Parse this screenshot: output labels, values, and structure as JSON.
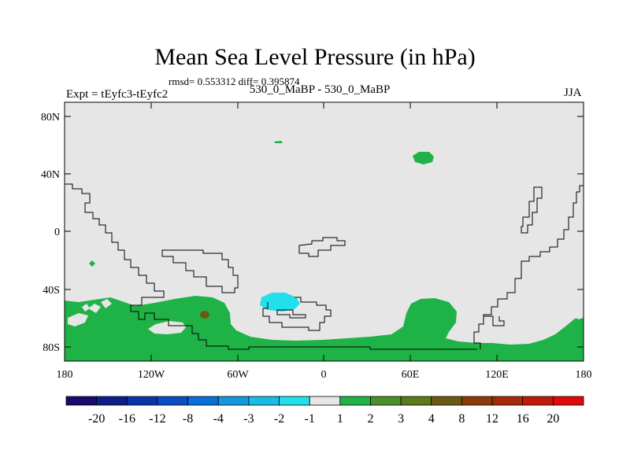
{
  "header": {
    "title": "Mean Sea Level Pressure (in hPa)",
    "stats": "rmsd= 0.553312 diff= 0.395874",
    "experiment": "Expt = tEyfc3-tEyfc2",
    "period": "530_0_MaBP - 530_0_MaBP",
    "season": "JJA"
  },
  "map": {
    "x_ticks": [
      "180",
      "120W",
      "60W",
      "0",
      "60E",
      "120E",
      "180"
    ],
    "y_ticks": [
      "80N",
      "40N",
      "0",
      "40S",
      "80S"
    ],
    "lon_range": [
      -180,
      180
    ],
    "lat_range": [
      -90,
      90
    ],
    "background_color": "#e6e6e6",
    "anomaly_regions": [
      {
        "name": "southern-positive-band",
        "category": "1 to 2",
        "color": "#1fb347"
      },
      {
        "name": "antarctic-brown-spot",
        "category": "4 to 8",
        "color": "#6b5a14"
      },
      {
        "name": "south-atlantic-negative",
        "category": "-2 to -1",
        "color": "#22e0eb"
      },
      {
        "name": "siberia-positive-patch",
        "category": "1 to 2",
        "color": "#1fb347"
      },
      {
        "name": "arctic-positive-sliver",
        "category": "1 to 2",
        "color": "#1fb347"
      },
      {
        "name": "pacific-positive-dot",
        "category": "1 to 2",
        "color": "#1fb347"
      }
    ]
  },
  "colorbar": {
    "labels": [
      "-20",
      "-16",
      "-12",
      "-8",
      "-4",
      "-3",
      "-2",
      "-1",
      "1",
      "2",
      "3",
      "4",
      "8",
      "12",
      "16",
      "20"
    ],
    "colors": [
      "#1a0a6e",
      "#0a1f8a",
      "#0a34a8",
      "#0a4fc2",
      "#0a6fd8",
      "#1299e0",
      "#17bde6",
      "#22e0eb",
      "#e6e6e6",
      "#1fb347",
      "#4a8f27",
      "#5c7a1a",
      "#6b5a14",
      "#8a3d0a",
      "#a52a0a",
      "#c21a0a",
      "#e00a0a"
    ]
  }
}
